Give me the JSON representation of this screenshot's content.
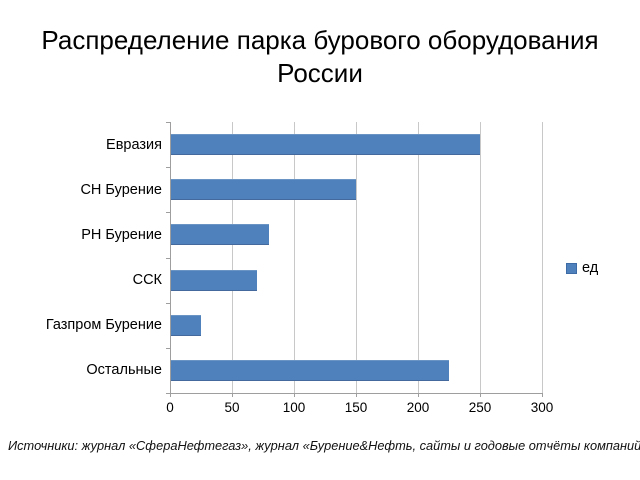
{
  "title": {
    "lines": [
      "Распределение парка бурового оборудования",
      "России"
    ]
  },
  "legend": {
    "label": "ед",
    "color": "#4f81bd"
  },
  "footer": "Источники: журнал «СфераНефтегаз», журнал «Бурение&Нефть, сайты и годовые отчёты компаний",
  "colors": {
    "bar": "#4f81bd",
    "gridline": "#c8c8c8",
    "axis": "#9e9e9e",
    "text": "#000000",
    "background": "#ffffff"
  },
  "chart_data": {
    "type": "bar",
    "orientation": "horizontal",
    "title": "Распределение парка бурового оборудования России",
    "categories": [
      "Евразия",
      "СН Бурение",
      "РН Бурение",
      "ССК",
      "Газпром Бурение",
      "Остальные"
    ],
    "values": [
      250,
      150,
      80,
      70,
      25,
      225
    ],
    "series": [
      {
        "name": "ед",
        "values": [
          250,
          150,
          80,
          70,
          25,
          225
        ]
      }
    ],
    "xlabel": "",
    "ylabel": "",
    "xlim": [
      0,
      300
    ],
    "xticks": [
      0,
      50,
      100,
      150,
      200,
      250,
      300
    ],
    "grid": true,
    "legend_position": "right"
  }
}
